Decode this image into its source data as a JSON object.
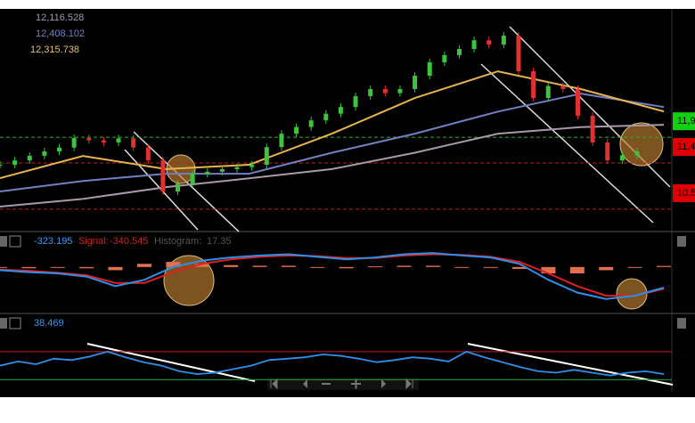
{
  "chart_data": [
    {
      "type": "candlestick",
      "closes": [
        11365,
        11450,
        11540,
        11625,
        11700,
        11885,
        11840,
        11800,
        11880,
        11700,
        11450,
        10845,
        11000,
        11190,
        11230,
        11280,
        11320,
        11365,
        11710,
        11970,
        12100,
        12230,
        12360,
        12490,
        12700,
        12840,
        12760,
        12840,
        13100,
        13360,
        13500,
        13620,
        13790,
        13705,
        13880,
        13185,
        12665,
        12900,
        12840,
        12320,
        11800,
        11450,
        11550,
        11625
      ],
      "up_color": "#3cc43c",
      "down_color": "#e03030",
      "ylim": [
        10100,
        14400
      ],
      "moving_averages": [
        {
          "color": "#a89aa8",
          "label_color": "#9a9ab4",
          "last": {
            "value": 12116.528,
            "label": "12,116.528"
          },
          "values": [
            10550,
            10700,
            10930,
            11100,
            11280,
            11600,
            11970,
            12100,
            12145
          ]
        },
        {
          "color": "#7080c0",
          "label_color": "#6f86c8",
          "last": {
            "value": 12408.102,
            "label": "12,408.102"
          },
          "values": [
            10845,
            11050,
            11190,
            11190,
            11600,
            11970,
            12400,
            12750,
            12490
          ]
        },
        {
          "color": "#e8b450",
          "label_color": "#e8c070",
          "last": {
            "value": 12315.738,
            "label": "12,315.738"
          },
          "values": [
            11105,
            11538,
            11280,
            11365,
            11970,
            12665,
            13185,
            12840,
            12405
          ]
        }
      ],
      "levels": [
        {
          "value": 11900,
          "label": "11,9",
          "color": "#10d010",
          "line_color": "#30b030"
        },
        {
          "value": 11400,
          "label": "11,4",
          "color": "#e00000",
          "line_color": "#c02020"
        },
        {
          "value": 10500,
          "label": "10,5",
          "color": "#e00000",
          "line_color": "#c02020"
        }
      ]
    },
    {
      "type": "macd",
      "macd_last": -323.195,
      "signal_label": "Signal:",
      "signal_last": -340.545,
      "histogram_label": "Histogram:",
      "histogram_last": 17.35,
      "macd_color": "#2f8fe8",
      "signal_color": "#e02020",
      "histogram_color": "#e07050",
      "ylim": [
        -700,
        500
      ],
      "macd": [
        -50,
        -80,
        -100,
        -150,
        -300,
        -200,
        0,
        100,
        150,
        180,
        200,
        160,
        120,
        150,
        200,
        220,
        180,
        150,
        50,
        -200,
        -400,
        -500,
        -450,
        -323
      ],
      "signal": [
        -40,
        -60,
        -90,
        -130,
        -250,
        -250,
        -80,
        50,
        120,
        160,
        180,
        170,
        140,
        140,
        180,
        200,
        190,
        160,
        80,
        -100,
        -300,
        -450,
        -450,
        -341
      ],
      "histogram": [
        -10,
        -20,
        -10,
        -20,
        -50,
        50,
        80,
        50,
        30,
        20,
        20,
        -10,
        -20,
        10,
        20,
        20,
        -10,
        -10,
        -30,
        -100,
        -100,
        -50,
        0,
        17
      ]
    },
    {
      "type": "rsi",
      "rsi_last": 38.469,
      "color": "#2f8fe8",
      "ylim": [
        5,
        122
      ],
      "levels": [
        {
          "value": 70,
          "color": "#c02020"
        },
        {
          "value": 30,
          "color": "#30a030"
        }
      ],
      "values": [
        50,
        56,
        52,
        60,
        58,
        63,
        70,
        62,
        55,
        50,
        42,
        38,
        40,
        45,
        50,
        58,
        60,
        62,
        66,
        64,
        60,
        55,
        58,
        62,
        60,
        56,
        70,
        62,
        55,
        48,
        42,
        40,
        44,
        40,
        36,
        40,
        42,
        38
      ]
    }
  ]
}
